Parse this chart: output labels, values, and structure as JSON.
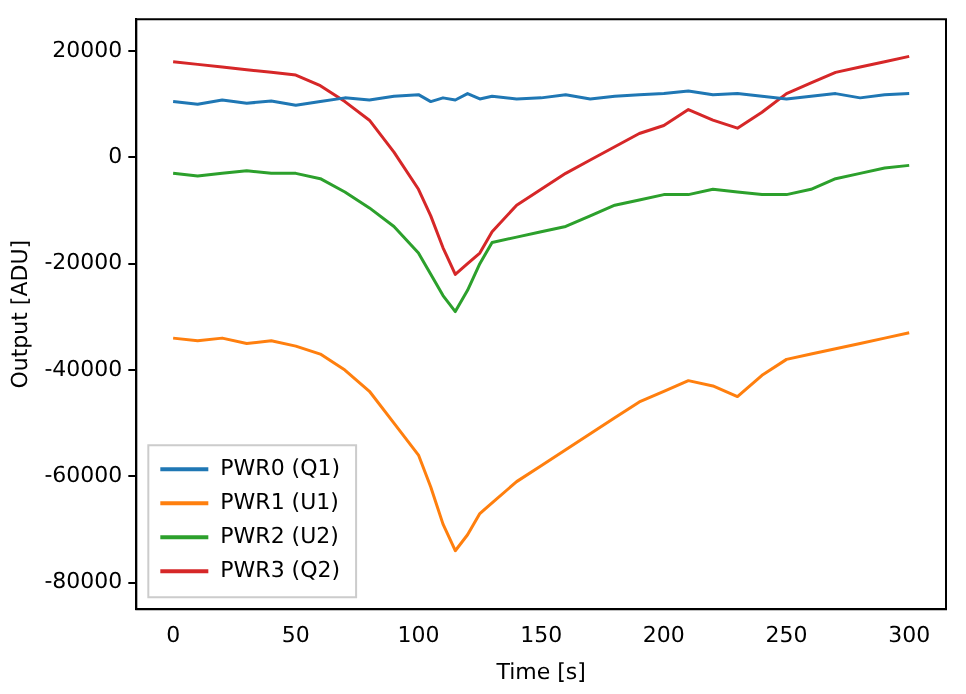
{
  "chart_data": {
    "type": "line",
    "xlabel": "Time [s]",
    "ylabel": "Output [ADU]",
    "x": [
      0,
      10,
      20,
      30,
      40,
      50,
      60,
      70,
      80,
      90,
      100,
      105,
      110,
      115,
      120,
      125,
      130,
      140,
      150,
      160,
      170,
      180,
      190,
      200,
      210,
      220,
      230,
      240,
      250,
      260,
      270,
      280,
      290,
      300
    ],
    "series": [
      {
        "name": "PWR0 (Q1)",
        "color": "#1f77b4",
        "values": [
          10500,
          10000,
          10800,
          10200,
          10600,
          9800,
          10500,
          11200,
          10800,
          11500,
          11800,
          10500,
          11200,
          10800,
          12000,
          11000,
          11500,
          11000,
          11200,
          11800,
          11000,
          11500,
          11800,
          12000,
          12500,
          11800,
          12000,
          11500,
          11000,
          11500,
          12000,
          11200,
          11800,
          12000
        ]
      },
      {
        "name": "PWR1 (U1)",
        "color": "#ff7f0e",
        "values": [
          -34000,
          -34500,
          -34000,
          -35000,
          -34500,
          -35500,
          -37000,
          -40000,
          -44000,
          -50000,
          -56000,
          -62000,
          -69000,
          -74000,
          -71000,
          -67000,
          -65000,
          -61000,
          -58000,
          -55000,
          -52000,
          -49000,
          -46000,
          -44000,
          -42000,
          -43000,
          -45000,
          -41000,
          -38000,
          -37000,
          -36000,
          -35000,
          -34000,
          -33000
        ]
      },
      {
        "name": "PWR2 (U2)",
        "color": "#2ca02c",
        "values": [
          -3000,
          -3500,
          -3000,
          -2500,
          -3000,
          -3000,
          -4000,
          -6500,
          -9500,
          -13000,
          -18000,
          -22000,
          -26000,
          -29000,
          -25000,
          -20000,
          -16000,
          -15000,
          -14000,
          -13000,
          -11000,
          -9000,
          -8000,
          -7000,
          -7000,
          -6000,
          -6500,
          -7000,
          -7000,
          -6000,
          -4000,
          -3000,
          -2000,
          -1500
        ]
      },
      {
        "name": "PWR3 (Q2)",
        "color": "#d62728",
        "values": [
          18000,
          17500,
          17000,
          16500,
          16000,
          15500,
          13500,
          10500,
          7000,
          1000,
          -6000,
          -11000,
          -17000,
          -22000,
          -20000,
          -18000,
          -14000,
          -9000,
          -6000,
          -3000,
          -500,
          2000,
          4500,
          6000,
          9000,
          7000,
          5500,
          8500,
          12000,
          14000,
          16000,
          17000,
          18000,
          19000
        ]
      }
    ],
    "xlim": [
      -15,
      315
    ],
    "xticks": [
      0,
      50,
      100,
      150,
      200,
      250,
      300
    ],
    "ylim": [
      -85000,
      26000
    ],
    "yticks": [
      -80000,
      -60000,
      -40000,
      -20000,
      0,
      20000
    ],
    "legend": "bottom left",
    "grid": false,
    "marker": "none",
    "line_style": "solid"
  }
}
